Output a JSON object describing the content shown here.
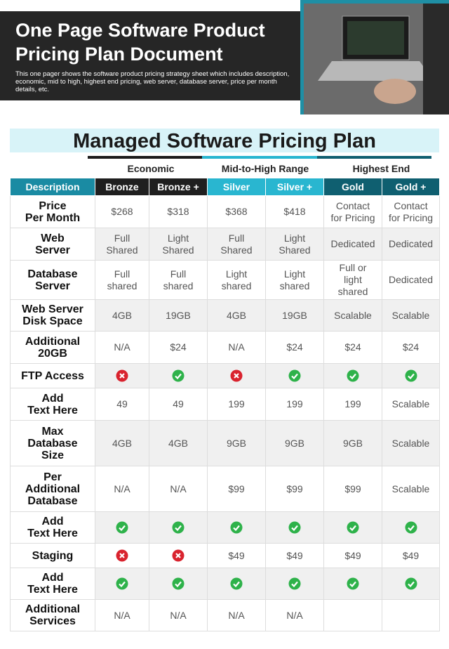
{
  "header": {
    "title": "One Page Software Product Pricing Plan Document",
    "description": "This one pager shows the software product pricing strategy sheet which includes description, economic, mid to high, highest end pricing, web server, database server, price per month details, etc."
  },
  "table": {
    "title": "Managed Software Pricing Plan",
    "groups": [
      "Economic",
      "Mid-to-High Range",
      "Highest End"
    ],
    "columns": [
      "Description",
      "Bronze",
      "Bronze +",
      "Silver",
      "Silver +",
      "Gold",
      "Gold +"
    ],
    "rows": [
      {
        "label": "Price\nPer Month",
        "cells": [
          "$268",
          "$318",
          "$368",
          "$418",
          "Contact\nfor Pricing",
          "Contact\nfor Pricing"
        ]
      },
      {
        "label": "Web\nServer",
        "cells": [
          "Full\nShared",
          "Light\nShared",
          "Full\nShared",
          "Light\nShared",
          "Dedicated",
          "Dedicated"
        ]
      },
      {
        "label": "Database\nServer",
        "cells": [
          "Full\nshared",
          "Full\nshared",
          "Light\nshared",
          "Light\nshared",
          "Full or\nlight\nshared",
          "Dedicated"
        ]
      },
      {
        "label": "Web Server\nDisk Space",
        "cells": [
          "4GB",
          "19GB",
          "4GB",
          "19GB",
          "Scalable",
          "Scalable"
        ]
      },
      {
        "label": "Additional\n20GB",
        "cells": [
          "N/A",
          "$24",
          "N/A",
          "$24",
          "$24",
          "$24"
        ]
      },
      {
        "label": "FTP Access",
        "cells": [
          false,
          true,
          false,
          true,
          true,
          true
        ]
      },
      {
        "label": "Add\nText Here",
        "cells": [
          "49",
          "49",
          "199",
          "199",
          "199",
          "Scalable"
        ]
      },
      {
        "label": "Max\nDatabase\nSize",
        "cells": [
          "4GB",
          "4GB",
          "9GB",
          "9GB",
          "9GB",
          "Scalable"
        ]
      },
      {
        "label": "Per\nAdditional\nDatabase",
        "cells": [
          "N/A",
          "N/A",
          "$99",
          "$99",
          "$99",
          "Scalable"
        ]
      },
      {
        "label": "Add\nText Here",
        "cells": [
          true,
          true,
          true,
          true,
          true,
          true
        ]
      },
      {
        "label": "Staging",
        "cells": [
          false,
          false,
          "$49",
          "$49",
          "$49",
          "$49"
        ]
      },
      {
        "label": "Add\nText Here",
        "cells": [
          true,
          true,
          true,
          true,
          true,
          true
        ]
      },
      {
        "label": "Additional\nServices",
        "cells": [
          "N/A",
          "N/A",
          "N/A",
          "N/A",
          null,
          null
        ]
      }
    ]
  }
}
